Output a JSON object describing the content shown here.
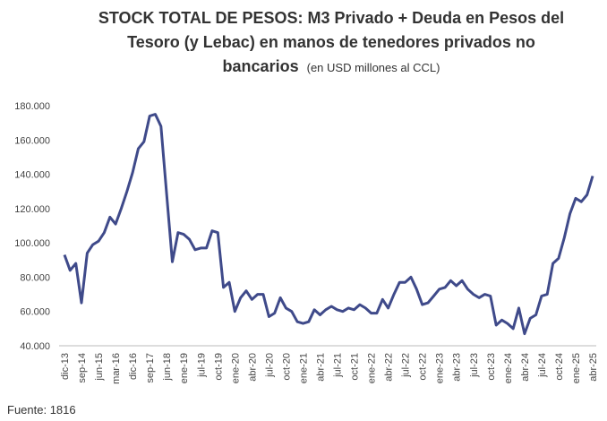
{
  "chart_data": {
    "type": "line",
    "title": [
      "STOCK TOTAL DE PESOS: M3 Privado + Deuda en Pesos del",
      "Tesoro (y Lebac) en manos de tenedores privados no",
      "bancarios"
    ],
    "subtitle": "(en USD millones al CCL)",
    "source": "Fuente: 1816",
    "categories": [
      "dic-13",
      null,
      null,
      "sep-14",
      null,
      null,
      "jun-15",
      null,
      null,
      "mar-16",
      null,
      null,
      "dic-16",
      null,
      null,
      "sep-17",
      null,
      null,
      "jun-18",
      null,
      null,
      "ene-19",
      null,
      null,
      "jul-19",
      null,
      null,
      "oct-19",
      null,
      null,
      "ene-20",
      null,
      null,
      "abr-20",
      null,
      null,
      "jul-20",
      null,
      null,
      "oct-20",
      null,
      null,
      "ene-21",
      null,
      null,
      "abr-21",
      null,
      null,
      "jul-21",
      null,
      null,
      "oct-21",
      null,
      null,
      "ene-22",
      null,
      null,
      "abr-22",
      null,
      null,
      "jul-22",
      null,
      null,
      "oct-22",
      null,
      null,
      "ene-23",
      null,
      null,
      "abr-23",
      null,
      null,
      "jul-23",
      null,
      null,
      "oct-23",
      null,
      null,
      "ene-24",
      null,
      null,
      "abr-24",
      null,
      null,
      "jul-24",
      null,
      null,
      "oct-24",
      null,
      null,
      "ene-25",
      null,
      null,
      "abr-25"
    ],
    "series": [
      {
        "name": "Stock total de pesos",
        "color": "#3f4a8a",
        "values": [
          93000,
          84000,
          88000,
          65000,
          94000,
          99000,
          101000,
          106000,
          115000,
          111000,
          120000,
          130000,
          141000,
          155000,
          159000,
          174000,
          175000,
          168000,
          128000,
          89000,
          106000,
          105000,
          102000,
          96000,
          97000,
          97000,
          107000,
          106000,
          74000,
          77000,
          60000,
          68000,
          72000,
          67000,
          70000,
          70000,
          57000,
          59000,
          68000,
          62000,
          60000,
          54000,
          53000,
          54000,
          61000,
          58000,
          61000,
          63000,
          61000,
          60000,
          62000,
          61000,
          64000,
          62000,
          59000,
          59000,
          67000,
          62000,
          70000,
          77000,
          77000,
          80000,
          73000,
          64000,
          65000,
          69000,
          73000,
          74000,
          78000,
          75000,
          78000,
          73000,
          70000,
          68000,
          70000,
          69000,
          52000,
          55000,
          53000,
          50000,
          62000,
          47000,
          56000,
          58000,
          69000,
          70000,
          88000,
          91000,
          103000,
          117000,
          126000,
          124000,
          128000,
          139000
        ]
      }
    ],
    "ylim": [
      40000,
      180000
    ],
    "yticks": [
      {
        "value": 40000,
        "label": "40.000"
      },
      {
        "value": 60000,
        "label": "60.000"
      },
      {
        "value": 80000,
        "label": "80.000"
      },
      {
        "value": 100000,
        "label": "100.000"
      },
      {
        "value": 120000,
        "label": "120.000"
      },
      {
        "value": 140000,
        "label": "140.000"
      },
      {
        "value": 160000,
        "label": "160.000"
      },
      {
        "value": 180000,
        "label": "180.000"
      }
    ],
    "grid": false
  }
}
